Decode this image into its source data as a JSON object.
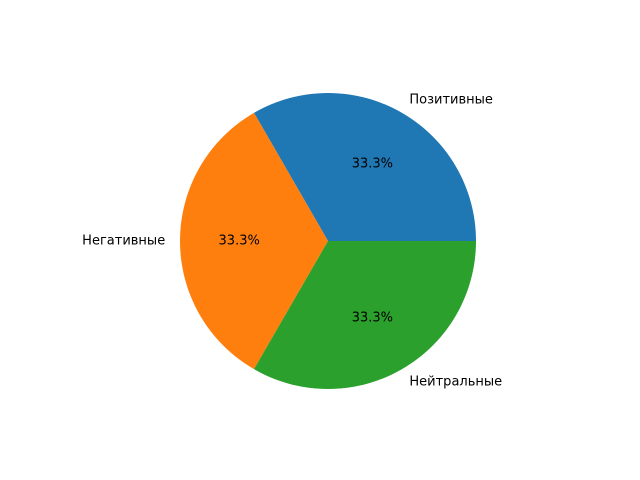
{
  "chart_data": {
    "type": "pie",
    "title": "",
    "categories": [
      "Позитивные",
      "Негативные",
      "Нейтральные"
    ],
    "values": [
      33.3,
      33.3,
      33.3
    ],
    "percent_labels": [
      "33.3%",
      "33.3%",
      "33.3%"
    ],
    "colors": [
      "#1f77b4",
      "#ff7f0e",
      "#2ca02c"
    ],
    "start_angle_deg": 0,
    "direction": "counterclockwise",
    "legend": "none"
  }
}
